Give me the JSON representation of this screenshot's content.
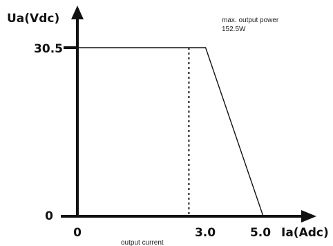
{
  "chart_data": {
    "type": "line",
    "ylabel": "Ua(Vdc)",
    "xlabel": "Ia(Adc)",
    "xlim": [
      0,
      5.3
    ],
    "ylim": [
      0,
      34
    ],
    "x_ticks": [
      {
        "value": 0,
        "label": "0"
      },
      {
        "value": 3.0,
        "label": "3.0"
      },
      {
        "value": 5.0,
        "label": "5.0"
      }
    ],
    "y_ticks": [
      {
        "value": 0,
        "label": "0"
      },
      {
        "value": 30.5,
        "label": "30.5"
      }
    ],
    "series": [
      {
        "x": [
          0,
          3.45,
          5.0
        ],
        "y": [
          30.5,
          30.5,
          0
        ]
      }
    ],
    "reference_line": {
      "x": 3.0,
      "y_from": 0,
      "y_to": 30.5,
      "style": "dotted"
    },
    "annotations": {
      "power_line1": "max. output power",
      "power_line2": "152.5W",
      "current_caption": "output current"
    },
    "grid": false,
    "colors": {
      "line": "#111111",
      "axis": "#111111"
    }
  }
}
